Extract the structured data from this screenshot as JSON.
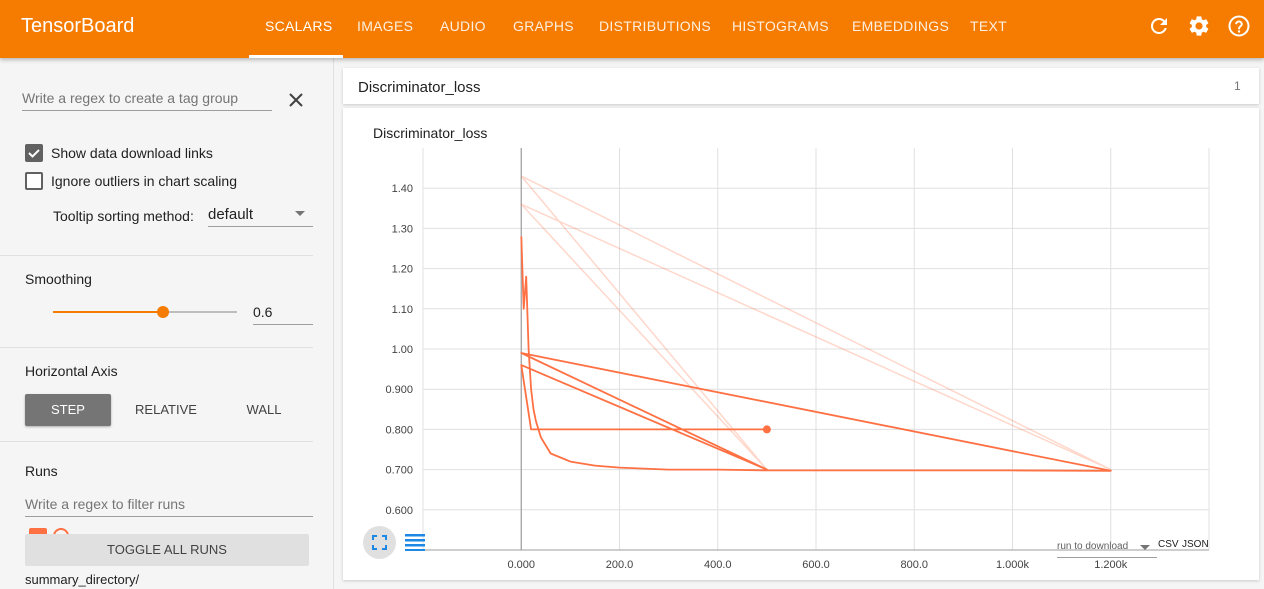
{
  "header": {
    "brand": "TensorBoard",
    "tabs": [
      "SCALARS",
      "IMAGES",
      "AUDIO",
      "GRAPHS",
      "DISTRIBUTIONS",
      "HISTOGRAMS",
      "EMBEDDINGS",
      "TEXT"
    ],
    "active_tab": "SCALARS",
    "icons": [
      "refresh-icon",
      "settings-icon",
      "help-icon"
    ]
  },
  "sidebar": {
    "tag_group_placeholder": "Write a regex to create a tag group",
    "show_download_links": "Show data download links",
    "show_download_links_checked": true,
    "ignore_outliers": "Ignore outliers in chart scaling",
    "ignore_outliers_checked": false,
    "tooltip_label": "Tooltip sorting method:",
    "tooltip_value": "default",
    "smoothing_title": "Smoothing",
    "smoothing_value": "0.6",
    "smoothing_fraction": 0.6,
    "horizontal_axis_title": "Horizontal Axis",
    "axis_options": [
      "STEP",
      "RELATIVE",
      "WALL"
    ],
    "axis_selected": "STEP",
    "runs_title": "Runs",
    "runs_placeholder": "Write a regex to filter runs",
    "toggle_all": "TOGGLE ALL RUNS",
    "run_name": "summary_directory/"
  },
  "card": {
    "group_title": "Discriminator_loss",
    "group_count": "1",
    "chart_title": "Discriminator_loss",
    "run_to_download": "run to download",
    "csv": "CSV",
    "json": "JSON"
  },
  "colors": {
    "accent": "#f57c00",
    "series": "#ff7043"
  },
  "chart_data": {
    "type": "line",
    "title": "Discriminator_loss",
    "xlabel": "",
    "ylabel": "",
    "x_ticks": [
      "0.000",
      "200.0",
      "400.0",
      "600.0",
      "800.0",
      "1.000k",
      "1.200k"
    ],
    "y_ticks": [
      "0.600",
      "0.700",
      "0.800",
      "0.900",
      "1.00",
      "1.10",
      "1.20",
      "1.30",
      "1.40"
    ],
    "xlim": [
      -200,
      1400
    ],
    "ylim": [
      0.5,
      1.5
    ],
    "grid": true,
    "series": [
      {
        "role": "raw",
        "x": [
          0,
          1200,
          0,
          500,
          0
        ],
        "y": [
          1.43,
          0.7,
          1.36,
          0.7,
          1.43
        ]
      },
      {
        "role": "smoothed",
        "x": [
          0,
          5,
          10,
          15,
          20,
          25,
          30,
          40,
          50,
          60,
          80,
          100,
          150,
          200,
          300,
          400,
          500,
          700,
          1000,
          1200,
          0,
          500,
          0,
          20,
          500
        ],
        "y": [
          1.28,
          1.1,
          1.18,
          1.0,
          0.9,
          0.85,
          0.82,
          0.78,
          0.76,
          0.74,
          0.73,
          0.72,
          0.71,
          0.705,
          0.7,
          0.7,
          0.698,
          0.698,
          0.698,
          0.697,
          0.99,
          0.7,
          0.96,
          0.8,
          0.8
        ]
      }
    ]
  }
}
